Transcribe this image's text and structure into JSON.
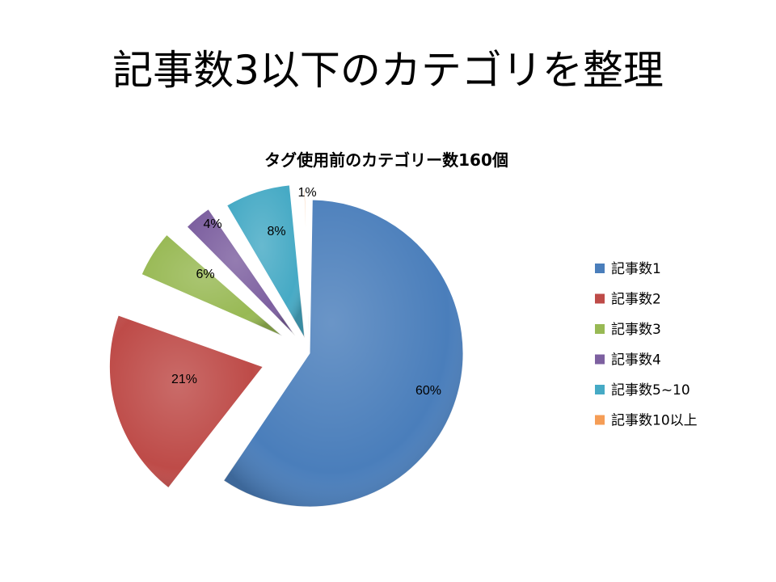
{
  "slide": {
    "title": "記事数3以下のカテゴリを整理"
  },
  "chart_data": {
    "type": "pie",
    "title": "タグ使用前のカテゴリー数160個",
    "categories": [
      "記事数1",
      "記事数2",
      "記事数3",
      "記事数4",
      "記事数5~10",
      "記事数10以上"
    ],
    "values": [
      60,
      21,
      6,
      4,
      8,
      1
    ],
    "data_labels": [
      "60%",
      "21%",
      "6%",
      "4%",
      "8%",
      "1%"
    ],
    "colors": [
      "#4a7ebb",
      "#be4b48",
      "#98b954",
      "#7d60a0",
      "#46aac5",
      "#f59d56"
    ],
    "exploded": true,
    "legend": "right"
  }
}
